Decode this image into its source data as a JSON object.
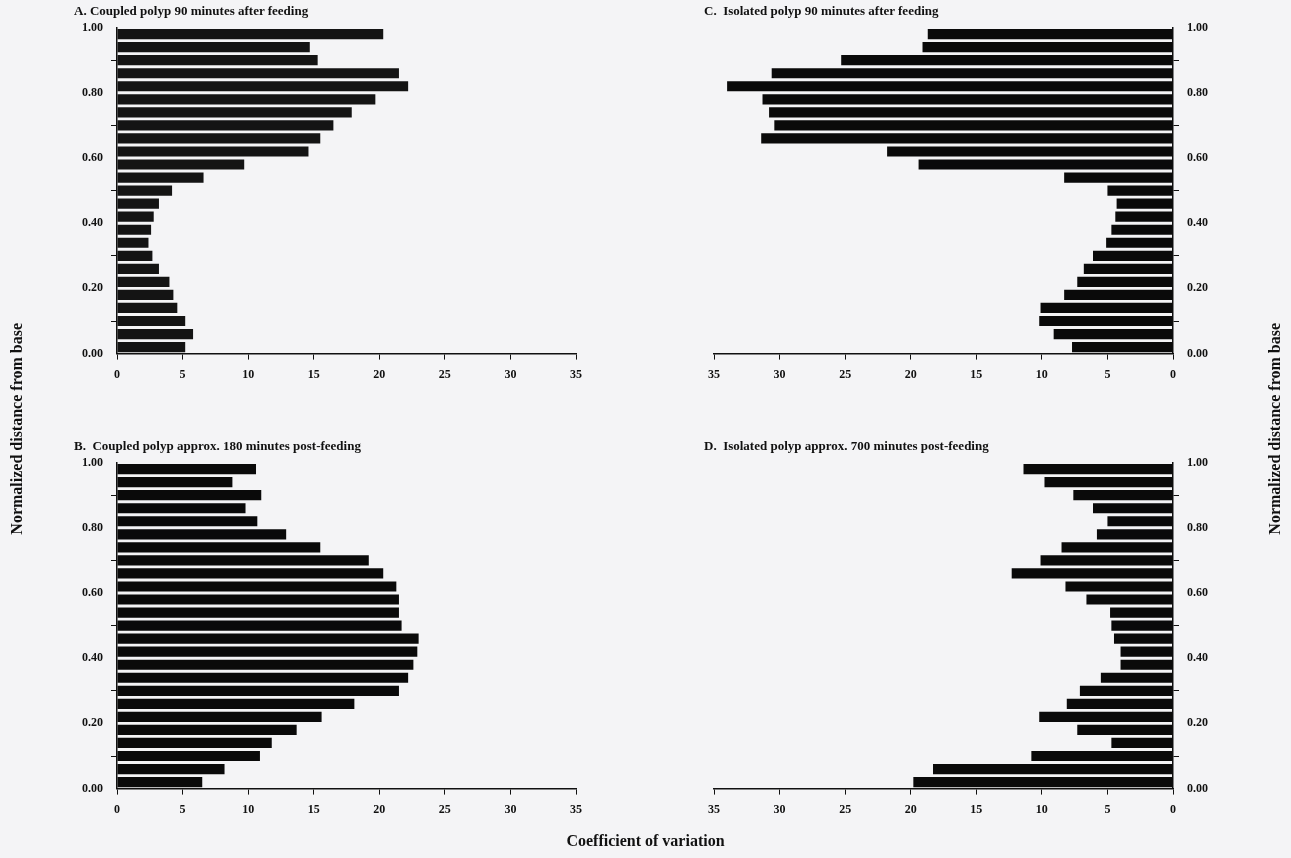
{
  "chart_data": [
    {
      "type": "bar",
      "orientation": "horizontal",
      "title": "A. Coupled polyp 90 minutes after feeding",
      "ylabel": "Normalized distance from base",
      "x": [
        0.98,
        0.94,
        0.9,
        0.86,
        0.82,
        0.78,
        0.74,
        0.7,
        0.66,
        0.62,
        0.58,
        0.54,
        0.5,
        0.46,
        0.42,
        0.38,
        0.34,
        0.3,
        0.26,
        0.22,
        0.18,
        0.14,
        0.1,
        0.06,
        0.02
      ],
      "values": [
        20.3,
        14.7,
        15.3,
        21.5,
        22.2,
        19.7,
        17.9,
        16.5,
        15.5,
        14.6,
        9.7,
        6.6,
        4.2,
        3.2,
        2.8,
        2.6,
        2.4,
        2.7,
        3.2,
        4.0,
        4.3,
        4.6,
        5.2,
        5.8,
        5.2
      ],
      "color": "#141414",
      "xlim": [
        0,
        35
      ],
      "xticks": [
        0,
        5,
        10,
        15,
        20,
        25,
        30,
        35
      ],
      "ylim": [
        0,
        1
      ],
      "yticks": [
        {
          "value": 0,
          "label": "0.00"
        },
        {
          "value": 0.2,
          "label": "0.20"
        },
        {
          "value": 0.4,
          "label": "0.40"
        },
        {
          "value": 0.6,
          "label": "0.60"
        },
        {
          "value": 0.8,
          "label": "0.80"
        },
        {
          "value": 1,
          "label": "1.00"
        }
      ]
    },
    {
      "type": "bar",
      "orientation": "horizontal",
      "title": "C.  Isolated polyp 90 minutes after feeding",
      "ylabel": "Normalized distance from base",
      "x": [
        0.98,
        0.94,
        0.9,
        0.86,
        0.82,
        0.78,
        0.74,
        0.7,
        0.66,
        0.62,
        0.58,
        0.54,
        0.5,
        0.46,
        0.42,
        0.38,
        0.34,
        0.3,
        0.26,
        0.22,
        0.18,
        0.14,
        0.1,
        0.06,
        0.02
      ],
      "values": [
        18.7,
        19.1,
        25.3,
        30.6,
        34.0,
        31.3,
        30.8,
        30.4,
        31.4,
        21.8,
        19.4,
        8.3,
        5.0,
        4.3,
        4.4,
        4.7,
        5.1,
        6.1,
        6.8,
        7.3,
        8.3,
        10.1,
        10.2,
        9.1,
        7.7
      ],
      "color": "#0a0a0a",
      "xlim": [
        35,
        0
      ],
      "xticks": [
        35,
        30,
        25,
        20,
        15,
        10,
        5,
        0
      ],
      "ylim": [
        0,
        1
      ],
      "yticks": [
        {
          "value": 0,
          "label": "0.00"
        },
        {
          "value": 0.2,
          "label": "0.20"
        },
        {
          "value": 0.4,
          "label": "0.40"
        },
        {
          "value": 0.6,
          "label": "0.60"
        },
        {
          "value": 0.8,
          "label": "0.80"
        },
        {
          "value": 1,
          "label": "1.00"
        }
      ]
    },
    {
      "type": "bar",
      "orientation": "horizontal",
      "title": "B.  Coupled polyp approx. 180 minutes post-feeding",
      "xlabel": "Coefficient  of variation",
      "x": [
        0.98,
        0.94,
        0.9,
        0.86,
        0.82,
        0.78,
        0.74,
        0.7,
        0.66,
        0.62,
        0.58,
        0.54,
        0.5,
        0.46,
        0.42,
        0.38,
        0.34,
        0.3,
        0.26,
        0.22,
        0.18,
        0.14,
        0.1,
        0.06,
        0.02
      ],
      "values": [
        10.6,
        8.8,
        11.0,
        9.8,
        10.7,
        12.9,
        15.5,
        19.2,
        20.3,
        21.3,
        21.5,
        21.5,
        21.7,
        23.0,
        22.9,
        22.6,
        22.2,
        21.5,
        18.1,
        15.6,
        13.7,
        11.8,
        10.9,
        8.2,
        6.5
      ],
      "color": "#0a0a0a",
      "xlim": [
        0,
        35
      ],
      "xticks": [
        0,
        5,
        10,
        15,
        20,
        25,
        30,
        35
      ],
      "ylim": [
        0,
        1
      ],
      "yticks": [
        {
          "value": 0,
          "label": "0.00"
        },
        {
          "value": 0.2,
          "label": "0.20"
        },
        {
          "value": 0.4,
          "label": "0.40"
        },
        {
          "value": 0.6,
          "label": "0.60"
        },
        {
          "value": 0.8,
          "label": "0.80"
        },
        {
          "value": 1,
          "label": "1.00"
        }
      ]
    },
    {
      "type": "bar",
      "orientation": "horizontal",
      "title": "D.  Isolated polyp approx. 700 minutes post-feeding",
      "x": [
        0.98,
        0.94,
        0.9,
        0.86,
        0.82,
        0.78,
        0.74,
        0.7,
        0.66,
        0.62,
        0.58,
        0.54,
        0.5,
        0.46,
        0.42,
        0.38,
        0.34,
        0.3,
        0.26,
        0.22,
        0.18,
        0.14,
        0.1,
        0.06,
        0.02
      ],
      "values": [
        11.4,
        9.8,
        7.6,
        6.1,
        5.0,
        5.8,
        8.5,
        10.1,
        12.3,
        8.2,
        6.6,
        4.8,
        4.7,
        4.5,
        4.0,
        4.0,
        5.5,
        7.1,
        8.1,
        10.2,
        7.3,
        4.7,
        10.8,
        18.3,
        19.8
      ],
      "color": "#0a0a0a",
      "xlim": [
        35,
        0
      ],
      "xticks": [
        35,
        30,
        25,
        20,
        15,
        10,
        5,
        0
      ],
      "ylim": [
        0,
        1
      ],
      "yticks": [
        {
          "value": 0,
          "label": "0.00"
        },
        {
          "value": 0.2,
          "label": "0.20"
        },
        {
          "value": 0.4,
          "label": "0.40"
        },
        {
          "value": 0.6,
          "label": "0.60"
        },
        {
          "value": 0.8,
          "label": "0.80"
        },
        {
          "value": 1,
          "label": "1.00"
        }
      ]
    }
  ]
}
